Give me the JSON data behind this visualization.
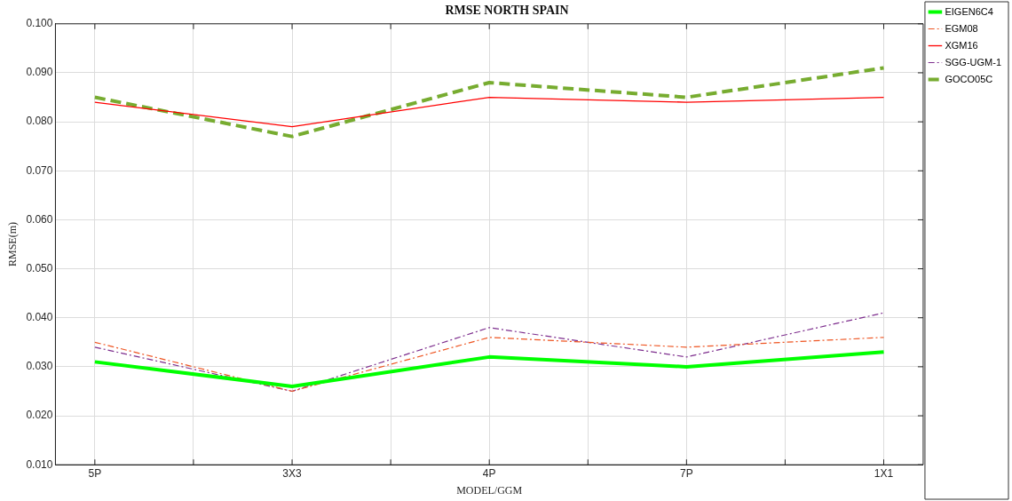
{
  "chart_data": {
    "type": "line",
    "title": "RMSE NORTH SPAIN",
    "xlabel": "MODEL/GGM",
    "ylabel": "RMSE(m)",
    "categories": [
      "5P",
      "3X3",
      "4P",
      "7P",
      "1X1"
    ],
    "ylim": [
      0.01,
      0.1
    ],
    "yticks": [
      {
        "value": 0.01,
        "label": "0.010"
      },
      {
        "value": 0.02,
        "label": "0.020"
      },
      {
        "value": 0.03,
        "label": "0.030"
      },
      {
        "value": 0.04,
        "label": "0.040"
      },
      {
        "value": 0.05,
        "label": "0.050"
      },
      {
        "value": 0.06,
        "label": "0.060"
      },
      {
        "value": 0.07,
        "label": "0.070"
      },
      {
        "value": 0.08,
        "label": "0.080"
      },
      {
        "value": 0.09,
        "label": "0.090"
      },
      {
        "value": 0.1,
        "label": "0.100"
      }
    ],
    "grid": true,
    "legend": "top right",
    "marker": "none",
    "series": [
      {
        "name": "EIGEN6C4",
        "color": "#00ff00",
        "line_style": "solid",
        "values": [
          0.031,
          0.026,
          0.032,
          0.03,
          0.033
        ]
      },
      {
        "name": "EGM08",
        "color": "#ee5522",
        "line_style": "dashdot",
        "values": [
          0.035,
          0.025,
          0.036,
          0.034,
          0.036
        ]
      },
      {
        "name": "XGM16",
        "color": "#ff0000",
        "line_style": "solid",
        "values": [
          0.084,
          0.079,
          0.085,
          0.084,
          0.085
        ]
      },
      {
        "name": "SGG-UGM-1",
        "color": "#7e2f8e",
        "line_style": "dashdot",
        "values": [
          0.034,
          0.025,
          0.038,
          0.032,
          0.041
        ]
      },
      {
        "name": "GOCO05C",
        "color": "#77ac30",
        "line_style": "dashed",
        "values": [
          0.085,
          0.077,
          0.088,
          0.085,
          0.091
        ]
      }
    ]
  }
}
